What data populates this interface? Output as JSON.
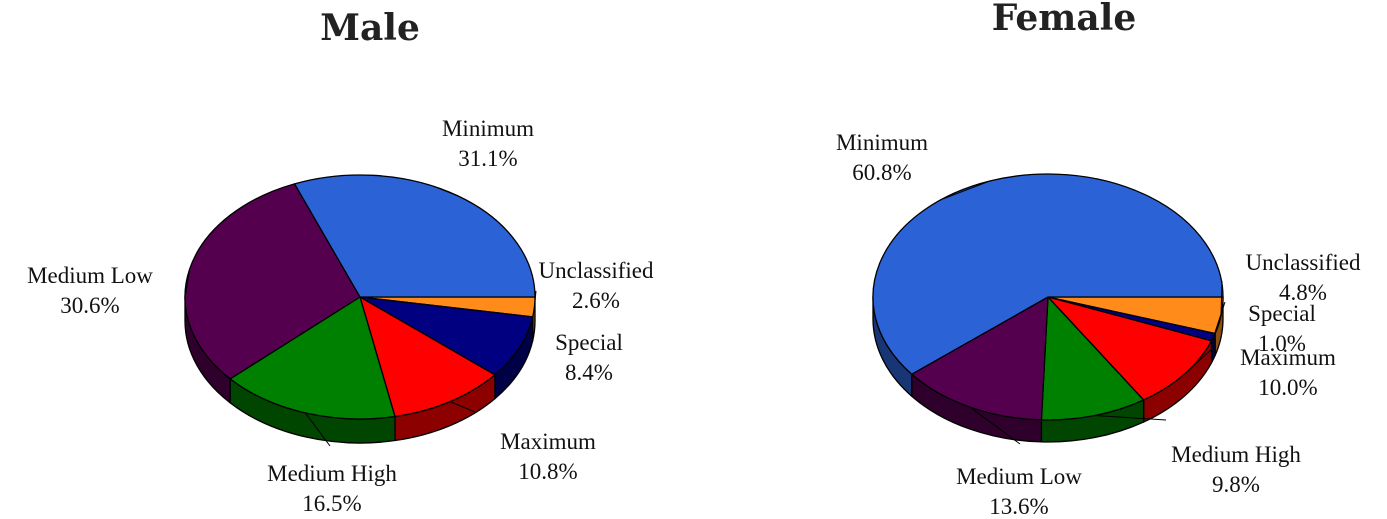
{
  "chart_data": [
    {
      "type": "pie",
      "title": "Male",
      "slices": [
        {
          "label": "Unclassified",
          "value": 2.6,
          "value_label": "2.6%",
          "color": "#ff8c1a"
        },
        {
          "label": "Special",
          "value": 8.4,
          "value_label": "8.4%",
          "color": "#000080"
        },
        {
          "label": "Maximum",
          "value": 10.8,
          "value_label": "10.8%",
          "color": "#ff0000"
        },
        {
          "label": "Medium High",
          "value": 16.5,
          "value_label": "16.5%",
          "color": "#008000"
        },
        {
          "label": "Medium Low",
          "value": 30.6,
          "value_label": "30.6%",
          "color": "#55004f"
        },
        {
          "label": "Minimum",
          "value": 31.1,
          "value_label": "31.1%",
          "color": "#2b62d6"
        }
      ]
    },
    {
      "type": "pie",
      "title": "Female",
      "slices": [
        {
          "label": "Unclassified",
          "value": 4.8,
          "value_label": "4.8%",
          "color": "#ff8c1a"
        },
        {
          "label": "Special",
          "value": 1.0,
          "value_label": "1.0%",
          "color": "#000080"
        },
        {
          "label": "Maximum",
          "value": 10.0,
          "value_label": "10.0%",
          "color": "#ff0000"
        },
        {
          "label": "Medium High",
          "value": 9.8,
          "value_label": "9.8%",
          "color": "#008000"
        },
        {
          "label": "Medium Low",
          "value": 13.6,
          "value_label": "13.6%",
          "color": "#55004f"
        },
        {
          "label": "Minimum",
          "value": 60.8,
          "value_label": "60.8%",
          "color": "#2b62d6"
        }
      ]
    }
  ]
}
